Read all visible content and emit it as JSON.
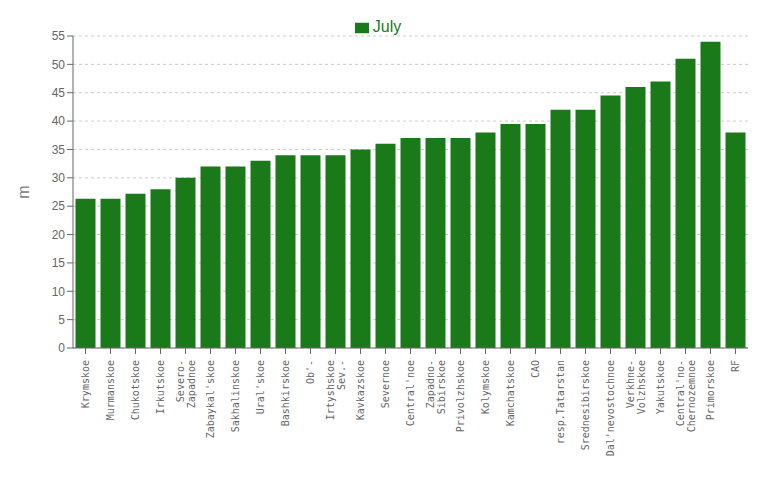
{
  "chart_data": {
    "type": "bar",
    "categories": [
      "Krymskoe",
      "Murmanskoe",
      "Chukotskoe",
      "Irkutskoe",
      "Severo-\nZapadnoe",
      "Zabaykal'skoe",
      "Sakhalinskoe",
      "Ural'skoe",
      "Bashkirskoe",
      "Ob'-",
      "Irtyshskoe\nSev.-",
      "Kavkazskoe",
      "Severnoe",
      "Central'noe",
      "Zapadno-\nSibirskoe",
      "Privolzhskoe",
      "Kolymskoe",
      "Kamchatskoe",
      "CAO",
      "resp.Tatarstan",
      "Srednesibirskoe",
      "Dal'nevostochnoe",
      "Verkhne-\nVolzhskoe",
      "Yakutskoe",
      "Central'no-\nChernozemnoe",
      "Primorskoe",
      "RF"
    ],
    "series": [
      {
        "name": "July",
        "color": "#1a7a1a",
        "values": [
          26.3,
          26.3,
          27.2,
          28.0,
          30.0,
          32.0,
          32.0,
          33.0,
          34.0,
          34.0,
          34.0,
          35.0,
          36.0,
          37.0,
          37.0,
          37.0,
          38.0,
          39.5,
          39.5,
          42.0,
          42.0,
          44.5,
          46.0,
          47.0,
          51.0,
          54.0,
          38.0
        ]
      }
    ],
    "ylabel": "m",
    "ylim": [
      0,
      55
    ],
    "yticks": [
      0,
      5,
      10,
      15,
      20,
      25,
      30,
      35,
      40,
      45,
      50,
      55
    ],
    "grid": true,
    "legend": "top"
  }
}
